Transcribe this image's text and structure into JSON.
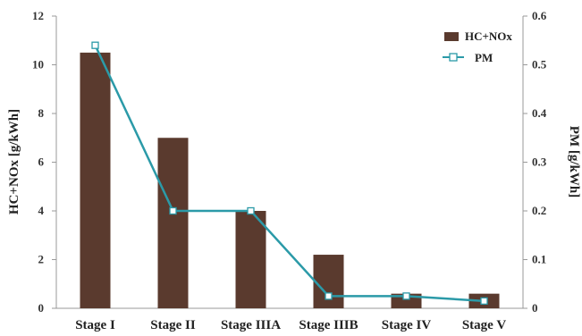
{
  "chart_data": {
    "type": "bar+line",
    "categories": [
      "Stage I",
      "Stage II",
      "Stage IIIA",
      "Stage IIIB",
      "Stage IV",
      "Stage V"
    ],
    "series": [
      {
        "name": "HC+NOx",
        "type": "bar",
        "axis": "left",
        "values": [
          10.5,
          7.0,
          4.0,
          2.2,
          0.6,
          0.6
        ]
      },
      {
        "name": "PM",
        "type": "line",
        "axis": "right",
        "values": [
          0.54,
          0.2,
          0.2,
          0.025,
          0.025,
          0.015
        ]
      }
    ],
    "ylabel": "HC+NOx [g/kWh]",
    "y2label": "PM [g/kWh]",
    "ylim": [
      0,
      12
    ],
    "y2lim": [
      0,
      0.6
    ],
    "yticks": [
      "0",
      "2",
      "4",
      "6",
      "8",
      "10",
      "12"
    ],
    "y2ticks": [
      "0",
      "0.1",
      "0.2",
      "0.3",
      "0.4",
      "0.5",
      "0.6"
    ],
    "legend_position": "top-right",
    "grid": false,
    "colors": {
      "bar": "#5a3a2e",
      "line": "#2b9aa8",
      "marker_fill": "#ffffff"
    }
  }
}
